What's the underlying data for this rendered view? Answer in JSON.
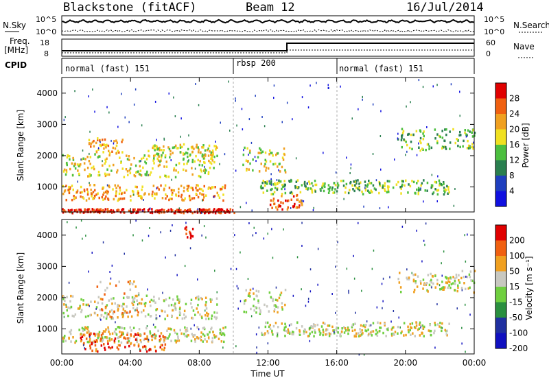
{
  "header": {
    "station": "Blackstone (fitACF)",
    "beam": "Beam 12",
    "date": "16/Jul/2014"
  },
  "top_panels": {
    "nsky_label": "N.Sky",
    "nsky_ticks": [
      "10^5",
      "10^0"
    ],
    "nsearch_label": "N.Search",
    "nsearch_ticks": [
      "10^5",
      "10^0"
    ],
    "freq_label_1": "Freq.",
    "freq_label_2": "[MHz]",
    "freq_ticks": [
      "18",
      "8"
    ],
    "nave_label": "Nave",
    "nave_ticks": [
      "60",
      "0"
    ],
    "cpid_label": "CPID",
    "cpid_segments": [
      {
        "label": "normal (fast) 151",
        "start_h": 0
      },
      {
        "label": "rbsp 200",
        "start_h": 10
      },
      {
        "label": "normal (fast) 151",
        "start_h": 16
      }
    ]
  },
  "chart_data": [
    {
      "type": "heatmap",
      "quantity": "power",
      "ylabel": "Slant Range [km]",
      "yticks": [
        "1000",
        "2000",
        "3000",
        "4000"
      ],
      "ylim": [
        200,
        4500
      ],
      "colorbar_label": "Power [dB]",
      "colorbar_ticks": [
        "4",
        "8",
        "12",
        "16",
        "20",
        "24",
        "28"
      ],
      "colors": [
        "#1010e0",
        "#1f3fbf",
        "#2a7f4f",
        "#4cbf3f",
        "#f0e020",
        "#f0a020",
        "#f06010",
        "#e00000"
      ],
      "echo_bands": [
        {
          "from_h": 0.0,
          "to_h": 9.0,
          "range_km": [
            1350,
            2100
          ],
          "level": 4
        },
        {
          "from_h": 0.0,
          "to_h": 9.5,
          "range_km": [
            600,
            1100
          ],
          "level": 5
        },
        {
          "from_h": 1.5,
          "to_h": 3.5,
          "range_km": [
            2100,
            2600
          ],
          "level": 5
        },
        {
          "from_h": 5.0,
          "to_h": 9.0,
          "range_km": [
            2000,
            2400
          ],
          "level": 4
        },
        {
          "from_h": 10.5,
          "to_h": 13.0,
          "range_km": [
            1500,
            2300
          ],
          "level": 4
        },
        {
          "from_h": 11.5,
          "to_h": 22.5,
          "range_km": [
            800,
            1250
          ],
          "level": 3
        },
        {
          "from_h": 12.0,
          "to_h": 14.0,
          "range_km": [
            300,
            800
          ],
          "level": 6
        },
        {
          "from_h": 19.5,
          "to_h": 24.0,
          "range_km": [
            2200,
            2900
          ],
          "level": 3
        },
        {
          "from_h": 0.0,
          "to_h": 10.0,
          "range_km": [
            200,
            330
          ],
          "level": 7
        }
      ]
    },
    {
      "type": "heatmap",
      "quantity": "velocity",
      "ylabel": "Slant Range [km]",
      "yticks": [
        "1000",
        "2000",
        "3000",
        "4000"
      ],
      "ylim": [
        200,
        4500
      ],
      "colorbar_label": "Velocity [m s⁻¹]",
      "colorbar_ticks": [
        "200",
        "100",
        "50",
        "15",
        "-15",
        "-50",
        "-100",
        "-200"
      ],
      "colors": [
        "#1010c0",
        "#2030a0",
        "#2a8f3f",
        "#6fcf3f",
        "#c8c8c0",
        "#f0a020",
        "#f06010",
        "#e00000"
      ],
      "echo_bands": [
        {
          "from_h": 0.0,
          "to_h": 9.0,
          "range_km": [
            1350,
            2100
          ],
          "level": 4
        },
        {
          "from_h": 0.0,
          "to_h": 9.5,
          "range_km": [
            600,
            1100
          ],
          "level": 4
        },
        {
          "from_h": 2.0,
          "to_h": 4.5,
          "range_km": [
            1400,
            2600
          ],
          "level": 5
        },
        {
          "from_h": 1.0,
          "to_h": 6.0,
          "range_km": [
            300,
            900
          ],
          "level": 6
        },
        {
          "from_h": 10.5,
          "to_h": 13.0,
          "range_km": [
            1500,
            2300
          ],
          "level": 4
        },
        {
          "from_h": 11.5,
          "to_h": 22.5,
          "range_km": [
            800,
            1250
          ],
          "level": 4
        },
        {
          "from_h": 19.5,
          "to_h": 24.0,
          "range_km": [
            2200,
            2900
          ],
          "level": 4
        },
        {
          "from_h": 7.0,
          "to_h": 7.6,
          "range_km": [
            3900,
            4300
          ],
          "level": 7
        }
      ]
    }
  ],
  "x_axis": {
    "label": "Time UT",
    "xlim": [
      0,
      24
    ],
    "ticks": [
      "00:00",
      "04:00",
      "08:00",
      "12:00",
      "16:00",
      "20:00",
      "00:00"
    ]
  }
}
